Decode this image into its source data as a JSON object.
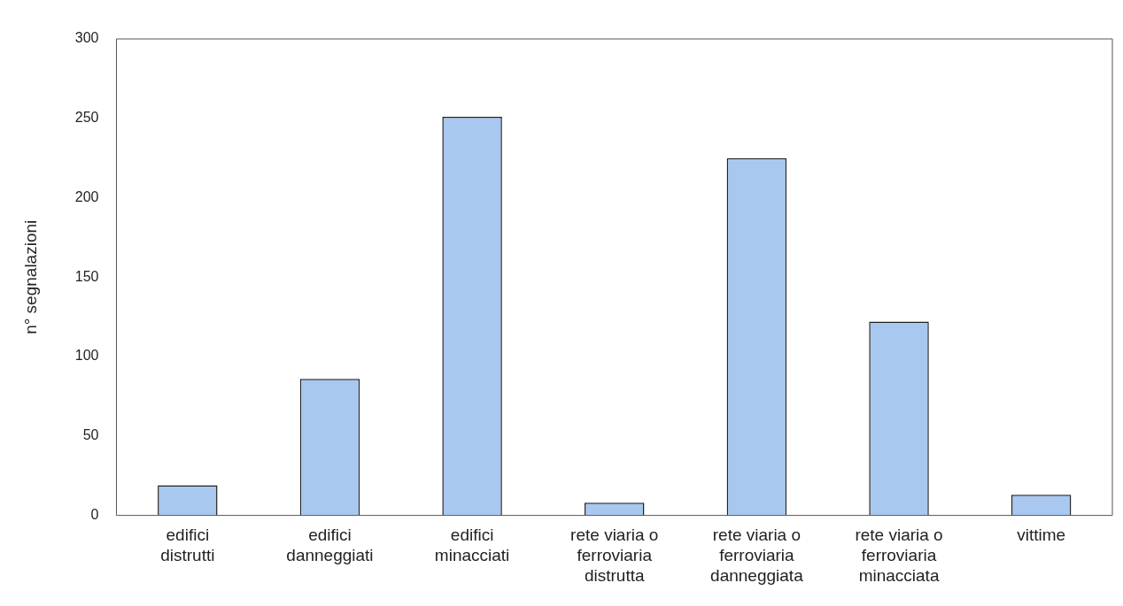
{
  "chart_data": {
    "type": "bar",
    "ylabel": "n° segnalazioni",
    "categories": [
      "edifici\ndistrutti",
      "edifici\ndanneggiati",
      "edifici\nminacciati",
      "rete viaria o\nferroviaria\ndistrutta",
      "rete viaria o\nferroviaria\ndanneggiata",
      "rete viaria o\nferroviaria\nminacciata",
      "vittime"
    ],
    "values": [
      19,
      86,
      251,
      8,
      225,
      122,
      13
    ],
    "color": "#a9c8f0",
    "ylim": [
      0,
      300
    ],
    "yticks": [
      0,
      50,
      100,
      150,
      200,
      250,
      300
    ],
    "grid": false,
    "legend": false
  }
}
